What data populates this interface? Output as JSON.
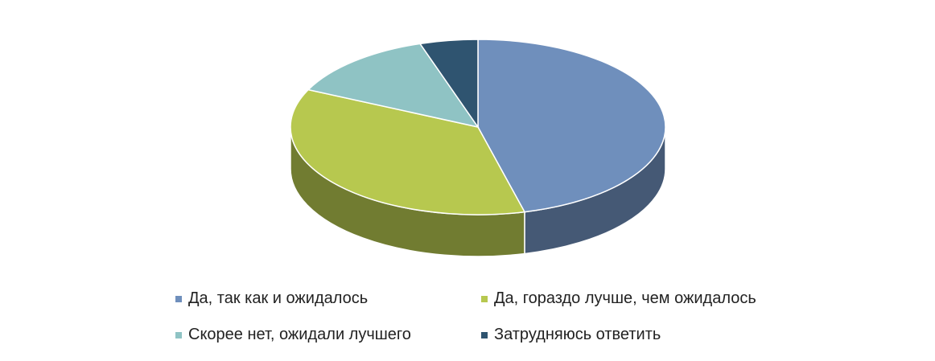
{
  "chart_data": {
    "type": "pie",
    "three_d": true,
    "title": "",
    "slices": [
      {
        "label": "Да, так как и ожидалось",
        "value": 46,
        "color": "#6f8fbc"
      },
      {
        "label": "Да, гораздо лучше, чем ожидалось",
        "value": 36,
        "color": "#b7c84f"
      },
      {
        "label": "Скорее нет, ожидали лучшего",
        "value": 13,
        "color": "#8fc3c4"
      },
      {
        "label": "Затрудняюсь ответить",
        "value": 5,
        "color": "#2f5470"
      }
    ],
    "legend_position": "bottom"
  }
}
